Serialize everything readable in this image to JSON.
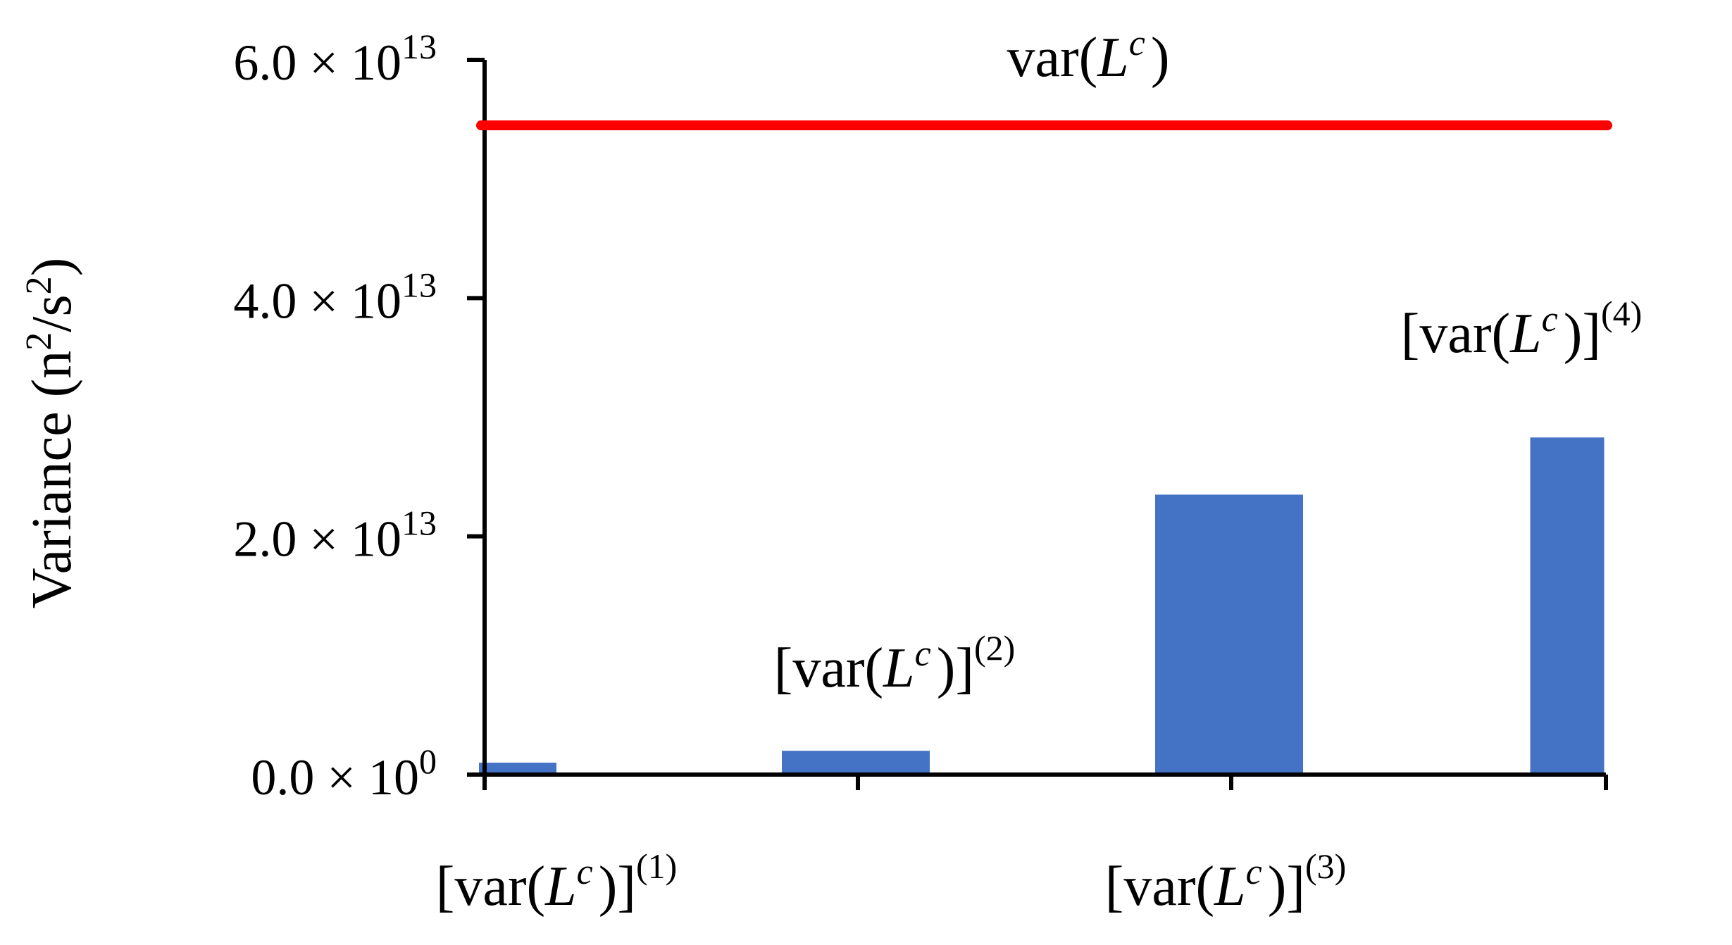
{
  "chart_data": {
    "type": "bar",
    "title": "",
    "xlabel": "",
    "ylabel": "Variance (n²/s²)",
    "ylabel_parts": {
      "base": "Variance (n",
      "sup1": "2",
      "mid": "/s",
      "sup2": "2",
      "end": ")"
    },
    "ylim": [
      0,
      60000000000000
    ],
    "y_ticks": [
      {
        "value": 0,
        "mantissa": "0.0 × 10",
        "exponent": "0"
      },
      {
        "value": 20000000000000,
        "mantissa": "2.0 × 10",
        "exponent": "13"
      },
      {
        "value": 40000000000000,
        "mantissa": "4.0 × 10",
        "exponent": "13"
      },
      {
        "value": 60000000000000,
        "mantissa": "6.0 × 10",
        "exponent": "13"
      }
    ],
    "categories": [
      "[var(Lc)](1)",
      "[var(Lc)](2)",
      "[var(Lc)](3)",
      "[var(Lc)](4)"
    ],
    "category_labels": [
      {
        "pre": "[var(",
        "L": "L",
        "c": "c",
        "post": ")]",
        "sup": "(1)"
      },
      {
        "pre": "[var(",
        "L": "L",
        "c": "c",
        "post": ")]",
        "sup": "(2)"
      },
      {
        "pre": "[var(",
        "L": "L",
        "c": "c",
        "post": ")]",
        "sup": "(3)"
      },
      {
        "pre": "[var(",
        "L": "L",
        "c": "c",
        "post": ")]",
        "sup": "(4)"
      }
    ],
    "values": [
      1000000000000,
      2000000000000,
      23500000000000,
      28300000000000
    ],
    "bar_color": "#4472C4",
    "reference_line": {
      "value": 54500000000000,
      "color": "#FF0000",
      "label": {
        "pre": "var(",
        "L": "L",
        "c": "c",
        "post": ")"
      }
    },
    "grid": false,
    "legend": "none"
  }
}
